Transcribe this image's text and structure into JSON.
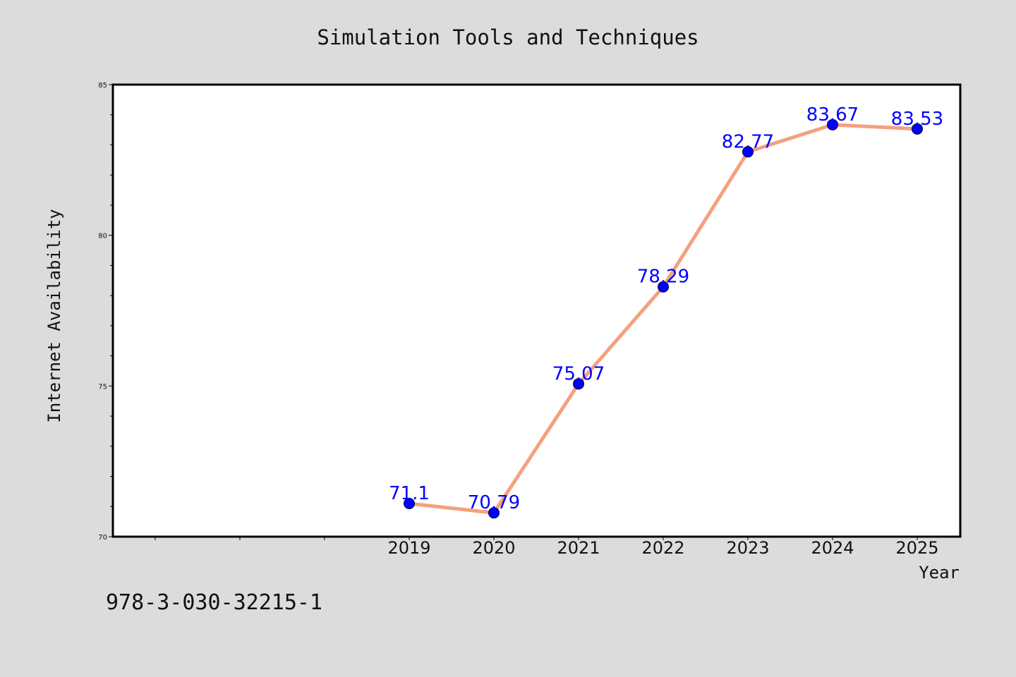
{
  "chart_data": {
    "type": "line",
    "title": "Simulation Tools and Techniques",
    "xlabel": "Year",
    "ylabel": "Internet Availability",
    "categories": [
      "2019",
      "2020",
      "2021",
      "2022",
      "2023",
      "2024",
      "2025"
    ],
    "series": [
      {
        "values": [
          71.1,
          70.79,
          75.07,
          78.29,
          82.77,
          83.67,
          83.53
        ],
        "labels": [
          "71.1",
          "70.79",
          "75.07",
          "78.29",
          "82.77",
          "83.67",
          "83.53"
        ],
        "line_color": "#f4a07f",
        "marker_color": "#0000ff"
      }
    ],
    "ylim": [
      70,
      85
    ],
    "yticks": [
      70,
      75,
      80,
      85
    ],
    "x_slots_before_first_category": 3,
    "grid": false,
    "legend": "none"
  },
  "footnote": "978-3-030-32215-1",
  "colors": {
    "background": "#dcdcdc",
    "plot_background": "#ffffff",
    "line": "#f4a07f",
    "marker": "#0000ff",
    "data_label": "#0000ff"
  }
}
